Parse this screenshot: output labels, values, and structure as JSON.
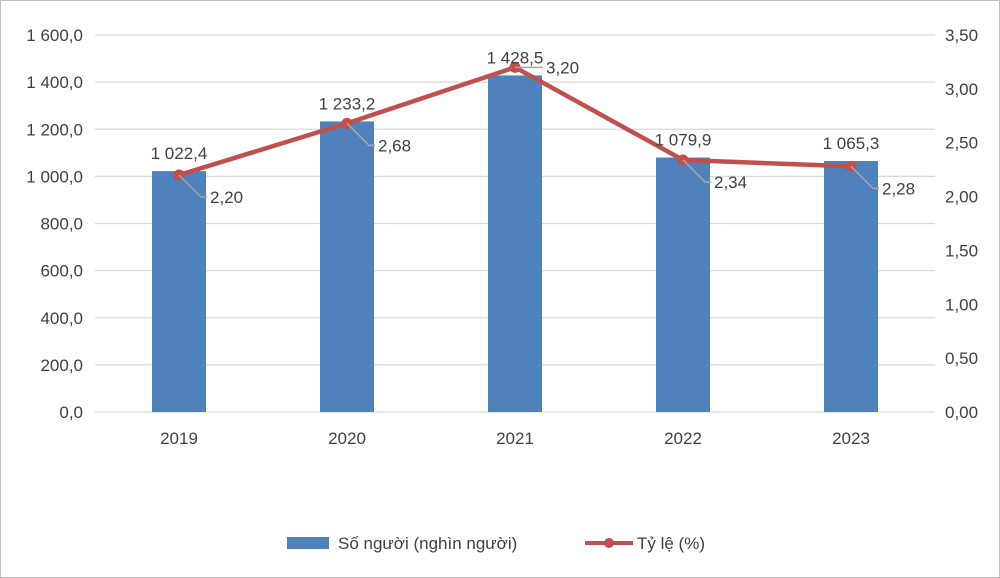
{
  "chart_data": {
    "type": "bar+line",
    "categories": [
      "2019",
      "2020",
      "2021",
      "2022",
      "2023"
    ],
    "series": [
      {
        "name": "Số người (nghìn người)",
        "type": "bar",
        "axis": "left",
        "color": "#4f81bd",
        "values": [
          1022.4,
          1233.2,
          1428.5,
          1079.9,
          1065.3
        ],
        "labels": [
          "1 022,4",
          "1 233,2",
          "1 428,5",
          "1 079,9",
          "1 065,3"
        ]
      },
      {
        "name": "Tỷ lệ (%)",
        "type": "line",
        "axis": "right",
        "color": "#c0504d",
        "values": [
          2.2,
          2.68,
          3.2,
          2.34,
          2.28
        ],
        "labels": [
          "2,20",
          "2,68",
          "3,20",
          "2,34",
          "2,28"
        ]
      }
    ],
    "left_axis": {
      "ylim": [
        0,
        1600
      ],
      "ticks": [
        "0,0",
        "200,0",
        "400,0",
        "600,0",
        "800,0",
        "1 000,0",
        "1 200,0",
        "1 400,0",
        "1 600,0"
      ]
    },
    "right_axis": {
      "ylim": [
        0,
        3.5
      ],
      "ticks": [
        "0,00",
        "0,50",
        "1,00",
        "1,50",
        "2,00",
        "2,50",
        "3,00",
        "3,50"
      ]
    },
    "grid": true,
    "legend_placement": "bottom",
    "legend": [
      "Số người (nghìn người)",
      "Tỷ lệ (%)"
    ]
  }
}
